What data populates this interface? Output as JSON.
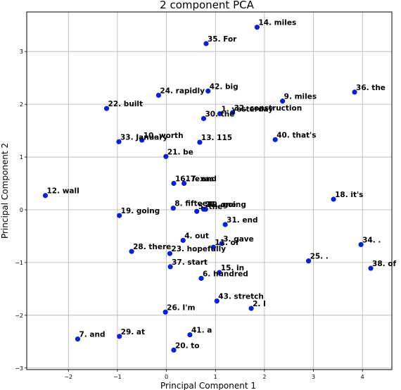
{
  "chart_data": {
    "type": "scatter",
    "title": "2 component PCA",
    "xlabel": "Principal Component 1",
    "ylabel": "Principal Component 2",
    "xlim": [
      -2.85,
      4.6
    ],
    "ylim": [
      -3.03,
      3.75
    ],
    "xticks": [
      -2,
      -1,
      0,
      1,
      2,
      3,
      4
    ],
    "yticks": [
      -3,
      -2,
      -1,
      0,
      1,
      2,
      3
    ],
    "grid": true,
    "point_color": "#0b1fd6",
    "points": [
      {
        "label": "1. yesterday",
        "x": 1.09,
        "y": 1.82
      },
      {
        "label": "2. I",
        "x": 1.73,
        "y": -1.87
      },
      {
        "label": "3. gave",
        "x": 1.13,
        "y": -0.64
      },
      {
        "label": "4. out",
        "x": 0.34,
        "y": -0.58
      },
      {
        "label": "5. the",
        "x": 0.62,
        "y": -0.03
      },
      {
        "label": "6. hundred",
        "x": 0.71,
        "y": -1.3
      },
      {
        "label": "7. and",
        "x": -1.81,
        "y": -2.45
      },
      {
        "label": "8. fifteen",
        "x": 0.14,
        "y": 0.03
      },
      {
        "label": "9. miles",
        "x": 2.37,
        "y": 2.06
      },
      {
        "label": "10. worth",
        "x": -0.5,
        "y": 1.32
      },
      {
        "label": "11. of",
        "x": 0.96,
        "y": -0.71
      },
      {
        "label": "12. wall",
        "x": -2.47,
        "y": 0.27
      },
      {
        "label": "13. 115",
        "x": 0.68,
        "y": 1.28
      },
      {
        "label": "14. miles",
        "x": 1.85,
        "y": 3.46
      },
      {
        "label": "15. in",
        "x": 1.08,
        "y": -1.19
      },
      {
        "label": "16. Texas",
        "x": 0.15,
        "y": 0.5
      },
      {
        "label": "17. and",
        "x": 0.36,
        "y": 0.5
      },
      {
        "label": "18. it's",
        "x": 3.41,
        "y": 0.2
      },
      {
        "label": "19. going",
        "x": -0.96,
        "y": -0.11
      },
      {
        "label": "20. to",
        "x": 0.15,
        "y": -2.66
      },
      {
        "label": "21. be",
        "x": -0.01,
        "y": 1.01
      },
      {
        "label": "22. built",
        "x": -1.22,
        "y": 1.92
      },
      {
        "label": "23. hopefully",
        "x": 0.07,
        "y": -0.83
      },
      {
        "label": "24. rapidly",
        "x": -0.16,
        "y": 2.17
      },
      {
        "label": "25. .",
        "x": 2.9,
        "y": -0.97
      },
      {
        "label": "26. I'm",
        "x": -0.02,
        "y": -1.94
      },
      {
        "label": "27. one",
        "x": 0.76,
        "y": 0.01
      },
      {
        "label": "28. there",
        "x": -0.71,
        "y": -0.79
      },
      {
        "label": "29. at",
        "x": -0.96,
        "y": -2.4
      },
      {
        "label": "30. the",
        "x": 0.76,
        "y": 1.73
      },
      {
        "label": "31. end",
        "x": 1.2,
        "y": -0.28
      },
      {
        "label": "32. construction",
        "x": 1.35,
        "y": 1.84
      },
      {
        "label": "33. January",
        "x": -0.97,
        "y": 1.29
      },
      {
        "label": "34. .",
        "x": 3.97,
        "y": -0.66
      },
      {
        "label": "35. For",
        "x": 0.81,
        "y": 3.15
      },
      {
        "label": "36. the",
        "x": 3.84,
        "y": 2.23
      },
      {
        "label": "37. start",
        "x": 0.08,
        "y": -1.08
      },
      {
        "label": "38. of",
        "x": 4.17,
        "y": -1.11
      },
      {
        "label": "39. going",
        "x": 0.8,
        "y": 0.01
      },
      {
        "label": "40. that's",
        "x": 2.22,
        "y": 1.33
      },
      {
        "label": "41. a",
        "x": 0.48,
        "y": -2.37
      },
      {
        "label": "42. big",
        "x": 0.85,
        "y": 2.25
      },
      {
        "label": "43. stretch",
        "x": 1.03,
        "y": -1.73
      }
    ]
  }
}
